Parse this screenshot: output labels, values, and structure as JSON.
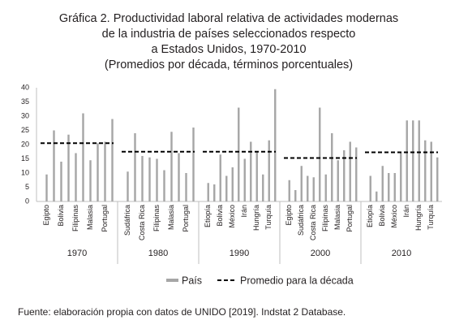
{
  "chart_data": {
    "type": "bar",
    "title": [
      "Gráfica 2. Productividad laboral relativa de actividades modernas",
      "de la industria de países seleccionados respecto",
      "a Estados Unidos, 1970-2010",
      "(Promedios por década, términos porcentuales)"
    ],
    "ylim": [
      0,
      40
    ],
    "yticks": [
      0,
      5,
      10,
      15,
      20,
      25,
      30,
      35,
      40
    ],
    "series": [
      {
        "name": "País",
        "color": "#a6a6a6"
      },
      {
        "name": "Promedio para la década",
        "color": "#000000"
      }
    ],
    "groups": [
      {
        "name": "1970",
        "average": 20.5,
        "categories": [
          "Egipto",
          null,
          "Bolivia",
          null,
          "Filipinas",
          null,
          "Malasia",
          null,
          "Portugal",
          null
        ],
        "values": [
          9.5,
          25,
          14,
          23.5,
          17,
          31,
          14.5,
          20.5,
          21,
          29
        ]
      },
      {
        "name": "1980",
        "average": 17.5,
        "categories": [
          "Sudáfrica",
          null,
          "Costa Rica",
          null,
          "Filipinas",
          null,
          "Malasia",
          null,
          "Portugal",
          null
        ],
        "values": [
          10.5,
          24,
          16,
          15.5,
          15,
          11,
          24.5,
          17,
          10,
          26
        ]
      },
      {
        "name": "1990",
        "average": 17.5,
        "categories": [
          "Etiopía",
          null,
          "Bolivia",
          null,
          "México",
          null,
          "Irán",
          null,
          "Hungría",
          null,
          "Turquía",
          null
        ],
        "values": [
          6.5,
          6,
          16.5,
          9,
          12,
          33,
          15,
          21,
          17.5,
          9.5,
          21.5,
          39.5
        ]
      },
      {
        "name": "2000",
        "average": 15.3,
        "categories": [
          "Egipto",
          null,
          "Sudáfrica",
          null,
          "Costa Rica",
          null,
          "Filipinas",
          null,
          "Malasia",
          null,
          "Portugal",
          null
        ],
        "values": [
          7.5,
          4,
          12.5,
          9,
          8.5,
          33,
          9.5,
          24,
          14.5,
          18,
          21,
          19
        ]
      },
      {
        "name": "2010",
        "average": 17.3,
        "categories": [
          "Etiopía",
          null,
          "Bolivia",
          null,
          "México",
          null,
          "Irán",
          null,
          "Hungría",
          null,
          "Turquía",
          null
        ],
        "values": [
          9,
          3.5,
          12.5,
          10,
          10,
          17,
          28.5,
          28.5,
          28.5,
          21.5,
          21,
          15.5
        ]
      }
    ],
    "source": "Fuente: elaboración propia con datos de UNIDO [2019]. Indstat 2 Database."
  }
}
